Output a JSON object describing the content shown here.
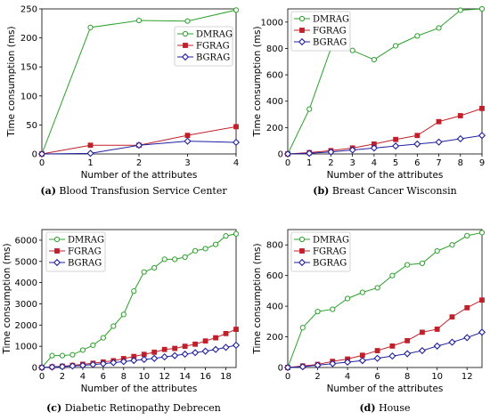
{
  "chart_data": [
    {
      "type": "line",
      "caption_label": "(a)",
      "caption_text": " Blood Transfusion Service Center",
      "xlabel": "Number of the attributes",
      "ylabel": "Time consumption (ms)",
      "xlim": [
        0,
        4
      ],
      "ylim": [
        0,
        250
      ],
      "xticks": [
        0,
        1,
        2,
        3,
        4
      ],
      "yticks": [
        0,
        50,
        100,
        150,
        200,
        250
      ],
      "legend": "top-right",
      "x": [
        0,
        1,
        2,
        3,
        4
      ],
      "series": [
        {
          "name": "DMRAG",
          "color": "#2ca02c",
          "marker": "circle",
          "values": [
            0,
            218,
            230,
            229,
            248
          ]
        },
        {
          "name": "FGRAG",
          "color": "#c0202a",
          "marker": "square",
          "values": [
            0,
            15,
            15,
            32,
            47
          ]
        },
        {
          "name": "BGRAG",
          "color": "#1f1f9f",
          "marker": "diamond",
          "values": [
            0,
            1,
            15,
            22,
            20
          ]
        }
      ]
    },
    {
      "type": "line",
      "caption_label": "(b)",
      "caption_text": " Breast Cancer Wisconsin",
      "xlabel": "Number of the attributes",
      "ylabel": "Time consumption (ms)",
      "xlim": [
        0,
        9
      ],
      "ylim": [
        0,
        1100
      ],
      "xticks": [
        0,
        1,
        2,
        3,
        4,
        5,
        6,
        7,
        8,
        9
      ],
      "yticks": [
        0,
        200,
        400,
        600,
        800,
        1000
      ],
      "legend": "top-left",
      "x": [
        0,
        1,
        2,
        3,
        4,
        5,
        6,
        7,
        8,
        9
      ],
      "series": [
        {
          "name": "DMRAG",
          "color": "#2ca02c",
          "marker": "circle",
          "values": [
            0,
            340,
            800,
            785,
            715,
            820,
            895,
            955,
            1090,
            1100
          ]
        },
        {
          "name": "FGRAG",
          "color": "#c0202a",
          "marker": "square",
          "values": [
            0,
            10,
            25,
            45,
            75,
            110,
            140,
            245,
            290,
            345
          ]
        },
        {
          "name": "BGRAG",
          "color": "#1f1f9f",
          "marker": "diamond",
          "values": [
            0,
            5,
            15,
            30,
            45,
            60,
            75,
            90,
            115,
            140
          ]
        }
      ]
    },
    {
      "type": "line",
      "caption_label": "(c)",
      "caption_text": " Diabetic Retinopathy Debrecen",
      "xlabel": "Number of the attributes",
      "ylabel": "Time consumption (ms)",
      "xlim": [
        0,
        19
      ],
      "ylim": [
        0,
        6500
      ],
      "xticks": [
        0,
        2,
        4,
        6,
        8,
        10,
        12,
        14,
        16,
        18
      ],
      "yticks": [
        0,
        1000,
        2000,
        3000,
        4000,
        5000,
        6000
      ],
      "legend": "top-left",
      "x": [
        0,
        1,
        2,
        3,
        4,
        5,
        6,
        7,
        8,
        9,
        10,
        11,
        12,
        13,
        14,
        15,
        16,
        17,
        18,
        19
      ],
      "series": [
        {
          "name": "DMRAG",
          "color": "#2ca02c",
          "marker": "circle",
          "values": [
            0,
            560,
            560,
            600,
            820,
            1050,
            1400,
            1950,
            2500,
            3600,
            4500,
            4700,
            5100,
            5100,
            5200,
            5500,
            5600,
            5800,
            6200,
            6300
          ]
        },
        {
          "name": "FGRAG",
          "color": "#c0202a",
          "marker": "square",
          "values": [
            0,
            30,
            60,
            100,
            150,
            200,
            260,
            320,
            420,
            520,
            620,
            720,
            850,
            900,
            1000,
            1100,
            1250,
            1400,
            1600,
            1800
          ]
        },
        {
          "name": "BGRAG",
          "color": "#1f1f9f",
          "marker": "diamond",
          "values": [
            0,
            20,
            40,
            70,
            100,
            140,
            180,
            230,
            280,
            330,
            380,
            430,
            500,
            560,
            630,
            700,
            770,
            850,
            950,
            1050
          ]
        }
      ]
    },
    {
      "type": "line",
      "caption_label": "(d)",
      "caption_text": " House",
      "xlabel": "Number of the attributes",
      "ylabel": "Time consumption (ms)",
      "xlim": [
        0,
        13
      ],
      "ylim": [
        0,
        900
      ],
      "xticks": [
        0,
        2,
        4,
        6,
        8,
        10,
        12
      ],
      "yticks": [
        0,
        200,
        400,
        600,
        800
      ],
      "legend": "top-left",
      "x": [
        0,
        1,
        2,
        3,
        4,
        5,
        6,
        7,
        8,
        9,
        10,
        11,
        12,
        13
      ],
      "series": [
        {
          "name": "DMRAG",
          "color": "#2ca02c",
          "marker": "circle",
          "values": [
            0,
            260,
            365,
            380,
            450,
            490,
            520,
            600,
            670,
            680,
            760,
            800,
            860,
            880
          ]
        },
        {
          "name": "FGRAG",
          "color": "#c0202a",
          "marker": "square",
          "values": [
            0,
            10,
            20,
            40,
            55,
            80,
            110,
            140,
            175,
            230,
            250,
            330,
            390,
            440
          ]
        },
        {
          "name": "BGRAG",
          "color": "#1f1f9f",
          "marker": "diamond",
          "values": [
            0,
            5,
            15,
            25,
            35,
            45,
            60,
            75,
            90,
            110,
            140,
            165,
            195,
            230
          ]
        }
      ]
    }
  ]
}
